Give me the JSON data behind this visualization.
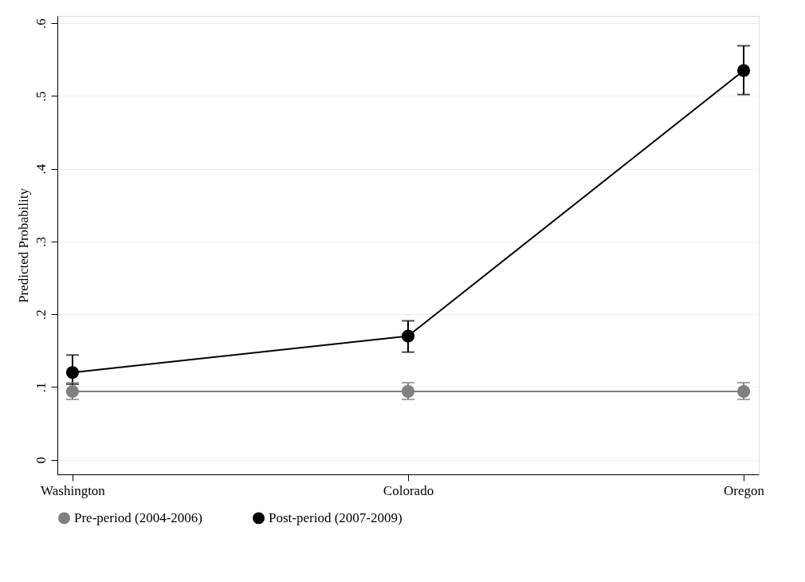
{
  "chart_data": {
    "type": "line",
    "ylabel": "Predicted Probability",
    "categories": [
      "Washington",
      "Colorado",
      "Oregon"
    ],
    "series": [
      {
        "name": "Pre-period (2004-2006)",
        "color": "#808080",
        "values": [
          0.094,
          0.094,
          0.094
        ],
        "errors": [
          [
            0.083,
            0.106
          ],
          [
            0.083,
            0.106
          ],
          [
            0.083,
            0.106
          ]
        ]
      },
      {
        "name": "Post-period (2007-2009)",
        "color": "#000000",
        "values": [
          0.12,
          0.17,
          0.535
        ],
        "errors": [
          [
            0.104,
            0.144
          ],
          [
            0.148,
            0.191
          ],
          [
            0.502,
            0.569
          ]
        ]
      }
    ],
    "ylim": [
      -0.02,
      0.61
    ],
    "yticks": [
      0,
      {
        "value": 0.1,
        "label": ".1"
      },
      {
        "value": 0.2,
        "label": ".2"
      },
      {
        "value": 0.3,
        "label": ".3"
      },
      {
        "value": 0.4,
        "label": ".4"
      },
      {
        "value": 0.5,
        "label": ".5"
      },
      {
        "value": 0.6,
        "label": ".6"
      }
    ],
    "grid": "y",
    "legend": "bottom",
    "marker": "circle",
    "line_style": "solid"
  }
}
